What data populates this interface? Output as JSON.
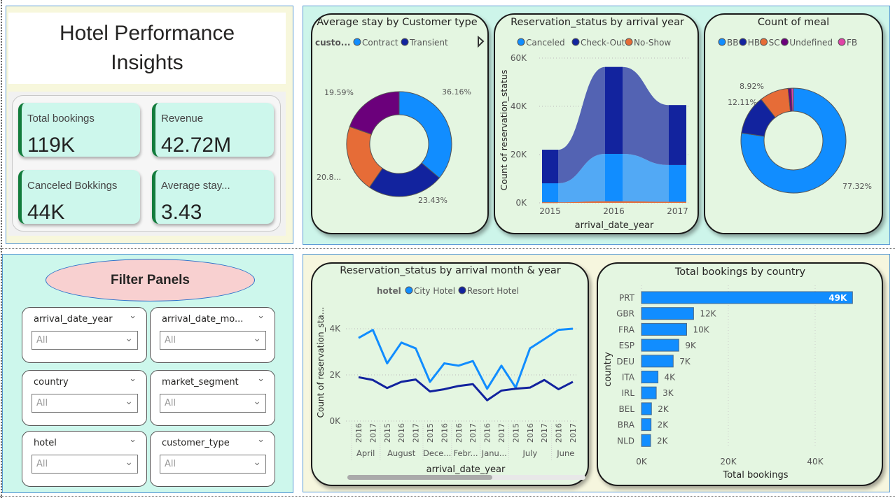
{
  "header": {
    "title": "Hotel Performance Insights"
  },
  "kpis": [
    {
      "label": "Total bookings",
      "value": "119K"
    },
    {
      "label": "Revenue",
      "value": "42.72M"
    },
    {
      "label": "Canceled Bokkings",
      "value": "44K"
    },
    {
      "label": "Average stay...",
      "value": "3.43"
    }
  ],
  "filters": {
    "title": "Filter Panels",
    "slicers": [
      {
        "label": "arrival_date_year",
        "value": "All"
      },
      {
        "label": "arrival_date_mo...",
        "value": "All"
      },
      {
        "label": "country",
        "value": "All"
      },
      {
        "label": "market_segment",
        "value": "All"
      },
      {
        "label": "hotel",
        "value": "All"
      },
      {
        "label": "customer_type",
        "value": "All"
      }
    ]
  },
  "colors": {
    "light_blue": "#118DFF",
    "dark_blue": "#12239E",
    "orange": "#E66C37",
    "purple": "#6B007B",
    "pink": "#E044A7",
    "card_bg": "#E4F6E1"
  },
  "chart_data": [
    {
      "type": "pie",
      "title": "Average stay by Customer type",
      "legend_title": "custo...",
      "legend": [
        "Contract",
        "Transient"
      ],
      "legend_more_icon": "triangle-right-icon",
      "slices": [
        {
          "label": "36.16%",
          "value": 36.16,
          "color": "#118DFF"
        },
        {
          "label": "23.43%",
          "value": 23.43,
          "color": "#12239E"
        },
        {
          "label": "20.8...",
          "value": 20.82,
          "color": "#E66C37"
        },
        {
          "label": "19.59%",
          "value": 19.59,
          "color": "#6B007B"
        }
      ]
    },
    {
      "type": "area",
      "title": "Reservation_status by arrival year",
      "xlabel": "arrival_date_year",
      "ylabel": "Count of reservation_status",
      "categories": [
        "2015",
        "2016",
        "2017"
      ],
      "yticks": [
        "0K",
        "20K",
        "40K",
        "60K"
      ],
      "ylim": [
        0,
        60000
      ],
      "series": [
        {
          "name": "Canceled",
          "color": "#118DFF",
          "values": [
            8100,
            20300,
            15700
          ]
        },
        {
          "name": "Check-Out",
          "color": "#12239E",
          "values": [
            13900,
            36000,
            24800
          ]
        },
        {
          "name": "No-Show",
          "color": "#E66C37",
          "values": [
            200,
            600,
            400
          ]
        }
      ]
    },
    {
      "type": "pie",
      "title": "Count of meal",
      "slices": [
        {
          "name": "BB",
          "label": "77.32%",
          "value": 77.32,
          "color": "#118DFF"
        },
        {
          "name": "HB",
          "label": "12.11%",
          "value": 12.11,
          "color": "#12239E"
        },
        {
          "name": "SC",
          "label": "8.92%",
          "value": 8.92,
          "color": "#E66C37"
        },
        {
          "name": "Undefined",
          "label": "",
          "value": 0.98,
          "color": "#6B007B"
        },
        {
          "name": "FB",
          "label": "",
          "value": 0.67,
          "color": "#E044A7"
        }
      ]
    },
    {
      "type": "line",
      "title": "Reservation_status by arrival month & year",
      "legend_title": "hotel",
      "xlabel": "arrival_date_year",
      "ylabel": "Count of reservation_sta...",
      "yticks": [
        "0K",
        "2K",
        "4K"
      ],
      "ylim": [
        0,
        4800
      ],
      "x_years": [
        "2016",
        "2017",
        "2015",
        "2016",
        "2017",
        "2015",
        "2016",
        "2016",
        "2017",
        "2016",
        "2017",
        "2015",
        "2016",
        "2017",
        "2016",
        "2017"
      ],
      "month_groups": [
        {
          "label": "April",
          "count": 2
        },
        {
          "label": "August",
          "count": 3
        },
        {
          "label": "Dece...",
          "count": 2
        },
        {
          "label": "Febr...",
          "count": 2
        },
        {
          "label": "Janu...",
          "count": 2
        },
        {
          "label": "July",
          "count": 3
        },
        {
          "label": "June",
          "count": 2
        }
      ],
      "series": [
        {
          "name": "City Hotel",
          "color": "#118DFF",
          "values": [
            3600,
            3950,
            2500,
            3400,
            3150,
            1700,
            2500,
            2400,
            2600,
            1400,
            2400,
            1450,
            3150,
            3550,
            3950,
            4000
          ]
        },
        {
          "name": "Resort Hotel",
          "color": "#12239E",
          "values": [
            1900,
            1780,
            1430,
            1700,
            1800,
            1280,
            1380,
            1520,
            1600,
            900,
            1320,
            1400,
            1450,
            1780,
            1380,
            1700
          ]
        }
      ]
    },
    {
      "type": "bar",
      "orientation": "horizontal",
      "title": "Total bookings by country",
      "xlabel": "Total bookings",
      "ylabel": "country",
      "xticks": [
        "0K",
        "20K",
        "40K"
      ],
      "xlim": [
        0,
        48600
      ],
      "categories": [
        "PRT",
        "GBR",
        "FRA",
        "ESP",
        "DEU",
        "ITA",
        "IRL",
        "BEL",
        "BRA",
        "NLD"
      ],
      "values": [
        48600,
        12000,
        10400,
        8600,
        7300,
        3800,
        3400,
        2300,
        2200,
        2100
      ],
      "labels": [
        "49K",
        "12K",
        "10K",
        "9K",
        "7K",
        "4K",
        "3K",
        "2K",
        "2K",
        "2K"
      ],
      "color": "#118DFF"
    }
  ]
}
